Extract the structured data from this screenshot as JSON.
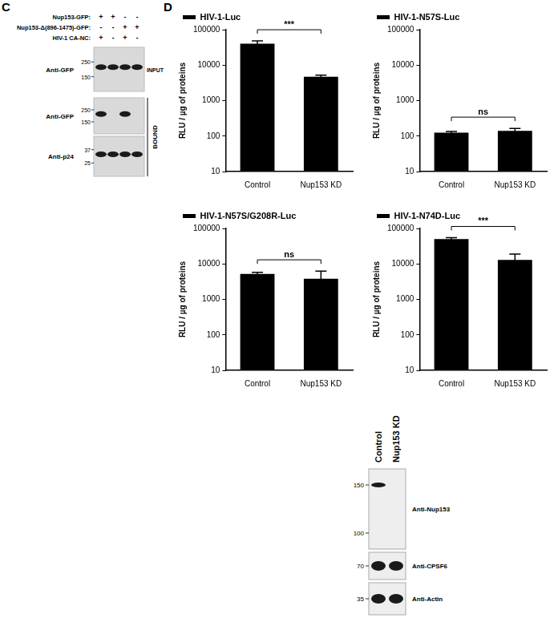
{
  "panel_labels": [
    "C",
    "D"
  ],
  "chart_data": [
    {
      "type": "bar",
      "categories": [
        "Control",
        "Nup153 KD"
      ],
      "series": [
        {
          "name": "HIV-1-Luc",
          "color": "#000000",
          "values": [
            40000,
            4700
          ],
          "errors": [
            8000,
            500
          ]
        }
      ],
      "y_label": "RLU / µg of proteins",
      "log": "y",
      "ylim": [
        10,
        100000
      ],
      "yticks": [
        10,
        100,
        1000,
        10000,
        100000
      ],
      "grid": false,
      "legend": "top",
      "annotation": "***"
    },
    {
      "type": "bar",
      "categories": [
        "Control",
        "Nup153 KD"
      ],
      "series": [
        {
          "name": "HIV-1-N57S-Luc",
          "color": "#000000",
          "values": [
            125,
            140
          ],
          "errors": [
            10,
            25
          ]
        }
      ],
      "y_label": "RLU / µg of proteins",
      "log": "y",
      "ylim": [
        10,
        100000
      ],
      "yticks": [
        10,
        100,
        1000,
        10000,
        100000
      ],
      "grid": false,
      "legend": "top",
      "annotation": "ns"
    },
    {
      "type": "bar",
      "categories": [
        "Control",
        "Nup153 KD"
      ],
      "series": [
        {
          "name": "HIV-1-N57S/G208R-Luc",
          "color": "#000000",
          "values": [
            5200,
            3800
          ],
          "errors": [
            600,
            2500
          ]
        }
      ],
      "y_label": "RLU / µg of proteins",
      "log": "y",
      "ylim": [
        10,
        100000
      ],
      "yticks": [
        10,
        100,
        1000,
        10000,
        100000
      ],
      "grid": false,
      "legend": "top",
      "annotation": "ns"
    },
    {
      "type": "bar",
      "categories": [
        "Control",
        "Nup153 KD"
      ],
      "series": [
        {
          "name": "HIV-1-N74D-Luc",
          "color": "#000000",
          "values": [
            50000,
            13000
          ],
          "errors": [
            5000,
            6000
          ]
        }
      ],
      "y_label": "RLU / µg of proteins",
      "log": "y",
      "ylim": [
        10,
        100000
      ],
      "yticks": [
        10,
        100,
        1000,
        10000,
        100000
      ],
      "grid": false,
      "legend": "top",
      "annotation": "***"
    }
  ],
  "blot_c": {
    "conditions": [
      {
        "label": "Nup153-GFP:",
        "lanes": [
          "+",
          "+",
          "-",
          "-"
        ]
      },
      {
        "label": "Nup153-Δ(896-1475)-GFP:",
        "lanes": [
          "-",
          "-",
          "+",
          "+"
        ]
      },
      {
        "label": "HIV-1 CA-NC:",
        "lanes": [
          "+",
          "-",
          "+",
          "-"
        ]
      }
    ],
    "strips": [
      {
        "antibody": "Anti-GFP",
        "markers": [
          250,
          150
        ],
        "bands": [
          true,
          true,
          true,
          true
        ],
        "group": "INPUT"
      },
      {
        "antibody": "Anti-GFP",
        "markers": [
          250,
          150
        ],
        "bands": [
          true,
          false,
          true,
          false
        ],
        "group": "BOUND"
      },
      {
        "antibody": "Anti-p24",
        "markers": [
          37,
          25
        ],
        "bands": [
          true,
          true,
          true,
          true
        ],
        "group": "BOUND"
      }
    ]
  },
  "blot_bottom": {
    "lanes": [
      "Control",
      "Nup153 KD"
    ],
    "strips": [
      {
        "antibody": "Anti-Nup153",
        "markers": [
          150,
          100
        ],
        "bands": [
          true,
          false
        ]
      },
      {
        "antibody": "Anti-CPSF6",
        "markers": [
          70
        ],
        "bands": [
          true,
          true
        ]
      },
      {
        "antibody": "Anti-Actin",
        "markers": [
          35
        ],
        "bands": [
          true,
          true
        ]
      }
    ]
  }
}
